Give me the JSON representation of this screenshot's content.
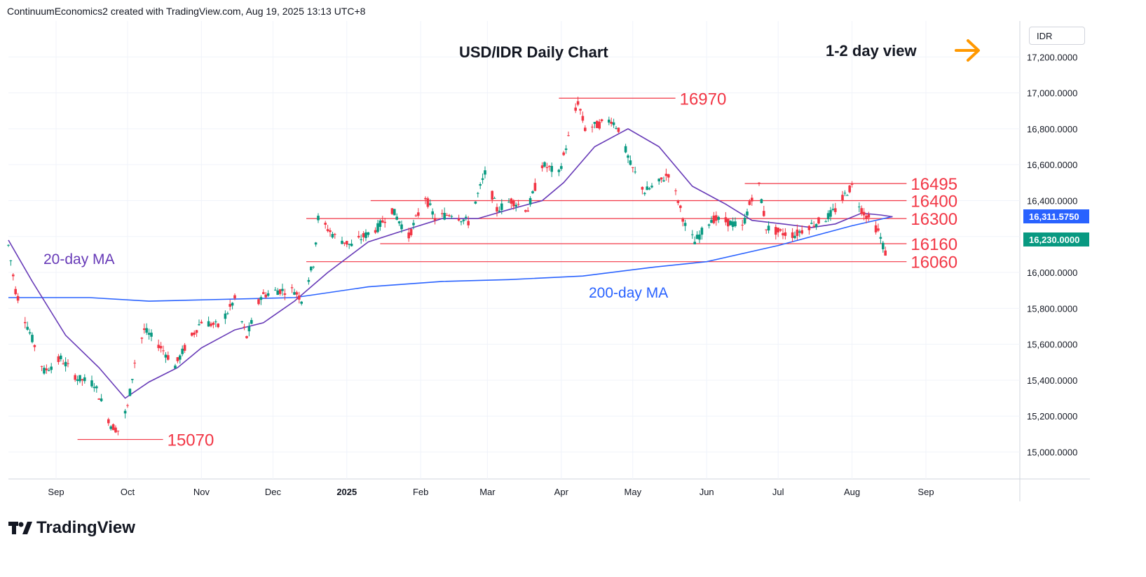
{
  "header": {
    "text": "ContinuumEconomics2 created with TradingView.com, Aug 19, 2025 13:13 UTC+8"
  },
  "currency": {
    "label": "IDR"
  },
  "footer": {
    "brand": "TradingView"
  },
  "colors": {
    "up": "#089981",
    "down": "#f23645",
    "ma20": "#673ab7",
    "ma200": "#2962ff",
    "level": "#f23645",
    "arrow": "#ff9800"
  },
  "chart_data": {
    "type": "candlestick",
    "title": "USD/IDR Daily Chart",
    "subtitle": "1-2 day view",
    "ylim": [
      14850,
      17400
    ],
    "y_ticks": [
      "17,200.0000",
      "17,000.0000",
      "16,800.0000",
      "16,600.0000",
      "16,400.0000",
      "16,200.0000",
      "16,000.0000",
      "15,800.0000",
      "15,600.0000",
      "15,400.0000",
      "15,200.0000",
      "15,000.0000"
    ],
    "x_ticks": [
      "Sep",
      "Oct",
      "Nov",
      "Dec",
      "2025",
      "Feb",
      "Mar",
      "Apr",
      "May",
      "Jun",
      "Jul",
      "Aug",
      "Sep"
    ],
    "price_badges": [
      {
        "label": "16,311.5750",
        "color": "#2962ff"
      },
      {
        "label": "16,230.0000",
        "color": "#089981"
      }
    ],
    "levels": [
      {
        "label": "16970",
        "value": 16970
      },
      {
        "label": "16495",
        "value": 16495
      },
      {
        "label": "16400",
        "value": 16400
      },
      {
        "label": "16300",
        "value": 16300
      },
      {
        "label": "16160",
        "value": 16160
      },
      {
        "label": "16060",
        "value": 16060
      },
      {
        "label": "15070",
        "value": 15070
      }
    ],
    "ma_labels": {
      "ma20": "20-day MA",
      "ma200": "200-day MA"
    },
    "close_path": [
      [
        "2024-08-12",
        16150
      ],
      [
        "2024-08-15",
        15900
      ],
      [
        "2024-08-20",
        15700
      ],
      [
        "2024-08-27",
        15450
      ],
      [
        "2024-09-03",
        15520
      ],
      [
        "2024-09-10",
        15410
      ],
      [
        "2024-09-17",
        15380
      ],
      [
        "2024-09-24",
        15150
      ],
      [
        "2024-09-27",
        15120
      ],
      [
        "2024-10-01",
        15250
      ],
      [
        "2024-10-04",
        15500
      ],
      [
        "2024-10-08",
        15680
      ],
      [
        "2024-10-14",
        15600
      ],
      [
        "2024-10-21",
        15480
      ],
      [
        "2024-10-25",
        15580
      ],
      [
        "2024-11-01",
        15730
      ],
      [
        "2024-11-08",
        15700
      ],
      [
        "2024-11-12",
        15780
      ],
      [
        "2024-11-15",
        15850
      ],
      [
        "2024-11-20",
        15640
      ],
      [
        "2024-11-26",
        15870
      ],
      [
        "2024-12-03",
        15900
      ],
      [
        "2024-12-10",
        15900
      ],
      [
        "2024-12-13",
        15850
      ],
      [
        "2024-12-18",
        16050
      ],
      [
        "2024-12-20",
        16300
      ],
      [
        "2024-12-27",
        16200
      ],
      [
        "2025-01-03",
        16150
      ],
      [
        "2025-01-08",
        16200
      ],
      [
        "2025-01-14",
        16250
      ],
      [
        "2025-01-20",
        16350
      ],
      [
        "2025-01-27",
        16200
      ],
      [
        "2025-02-03",
        16420
      ],
      [
        "2025-02-07",
        16300
      ],
      [
        "2025-02-14",
        16330
      ],
      [
        "2025-02-21",
        16280
      ],
      [
        "2025-02-28",
        16550
      ],
      [
        "2025-03-05",
        16350
      ],
      [
        "2025-03-11",
        16400
      ],
      [
        "2025-03-18",
        16350
      ],
      [
        "2025-03-24",
        16600
      ],
      [
        "2025-03-31",
        16550
      ],
      [
        "2025-04-08",
        16950
      ],
      [
        "2025-04-11",
        16800
      ],
      [
        "2025-04-16",
        16820
      ],
      [
        "2025-04-22",
        16850
      ],
      [
        "2025-04-25",
        16800
      ],
      [
        "2025-04-30",
        16600
      ],
      [
        "2025-05-06",
        16450
      ],
      [
        "2025-05-12",
        16500
      ],
      [
        "2025-05-16",
        16550
      ],
      [
        "2025-05-20",
        16400
      ],
      [
        "2025-05-23",
        16260
      ],
      [
        "2025-05-27",
        16170
      ],
      [
        "2025-06-03",
        16300
      ],
      [
        "2025-06-10",
        16280
      ],
      [
        "2025-06-16",
        16250
      ],
      [
        "2025-06-20",
        16420
      ],
      [
        "2025-06-23",
        16480
      ],
      [
        "2025-06-26",
        16250
      ],
      [
        "2025-07-02",
        16220
      ],
      [
        "2025-07-08",
        16210
      ],
      [
        "2025-07-14",
        16260
      ],
      [
        "2025-07-21",
        16300
      ],
      [
        "2025-07-25",
        16350
      ],
      [
        "2025-07-30",
        16450
      ],
      [
        "2025-08-01",
        16480
      ],
      [
        "2025-08-05",
        16350
      ],
      [
        "2025-08-08",
        16300
      ],
      [
        "2025-08-12",
        16230
      ],
      [
        "2025-08-15",
        16110
      ],
      [
        "2025-08-18",
        16230
      ]
    ],
    "ma20_path": [
      [
        "2024-08-12",
        16180
      ],
      [
        "2024-08-22",
        15950
      ],
      [
        "2024-09-05",
        15650
      ],
      [
        "2024-09-19",
        15470
      ],
      [
        "2024-09-30",
        15300
      ],
      [
        "2024-10-10",
        15390
      ],
      [
        "2024-10-22",
        15470
      ],
      [
        "2024-11-01",
        15580
      ],
      [
        "2024-11-15",
        15680
      ],
      [
        "2024-11-27",
        15720
      ],
      [
        "2024-12-10",
        15840
      ],
      [
        "2024-12-24",
        16000
      ],
      [
        "2025-01-10",
        16170
      ],
      [
        "2025-01-24",
        16230
      ],
      [
        "2025-02-10",
        16300
      ],
      [
        "2025-02-25",
        16300
      ],
      [
        "2025-03-10",
        16350
      ],
      [
        "2025-03-24",
        16400
      ],
      [
        "2025-04-02",
        16500
      ],
      [
        "2025-04-15",
        16700
      ],
      [
        "2025-04-29",
        16800
      ],
      [
        "2025-05-12",
        16700
      ],
      [
        "2025-05-26",
        16480
      ],
      [
        "2025-06-09",
        16380
      ],
      [
        "2025-06-20",
        16290
      ],
      [
        "2025-07-03",
        16270
      ],
      [
        "2025-07-15",
        16250
      ],
      [
        "2025-07-25",
        16270
      ],
      [
        "2025-08-05",
        16330
      ],
      [
        "2025-08-13",
        16320
      ],
      [
        "2025-08-18",
        16310
      ]
    ],
    "ma200_path": [
      [
        "2024-08-12",
        15860
      ],
      [
        "2024-09-15",
        15860
      ],
      [
        "2024-10-10",
        15840
      ],
      [
        "2024-11-10",
        15850
      ],
      [
        "2024-12-10",
        15860
      ],
      [
        "2025-01-10",
        15920
      ],
      [
        "2025-02-10",
        15950
      ],
      [
        "2025-03-10",
        15960
      ],
      [
        "2025-04-10",
        15980
      ],
      [
        "2025-05-10",
        16030
      ],
      [
        "2025-06-01",
        16060
      ],
      [
        "2025-07-01",
        16150
      ],
      [
        "2025-08-01",
        16260
      ],
      [
        "2025-08-18",
        16311
      ]
    ]
  }
}
